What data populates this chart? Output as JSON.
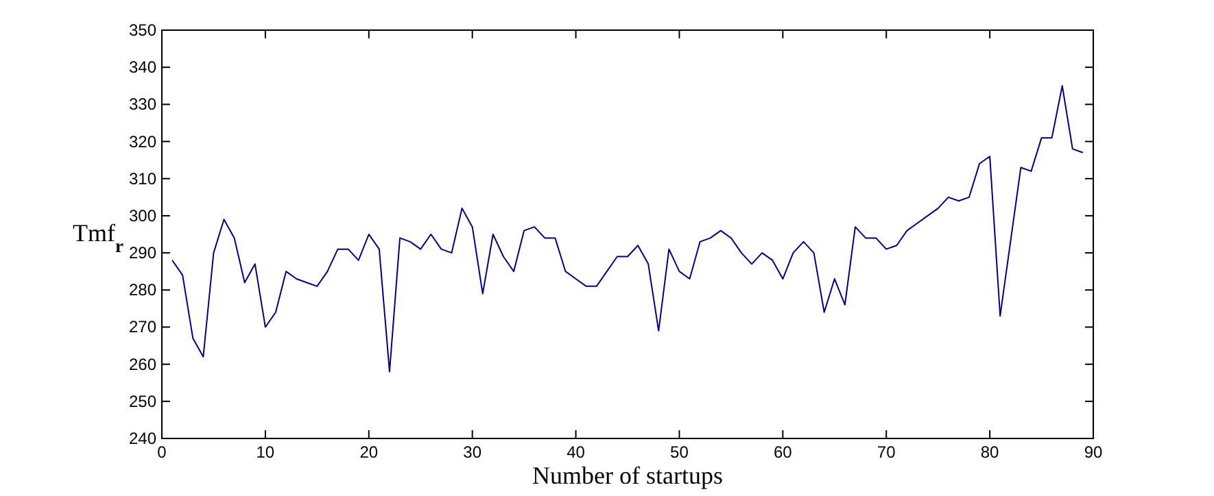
{
  "chart_data": {
    "type": "line",
    "xlabel": "Number of startups",
    "ylabel": "Tmf$_{r}$",
    "xlim": [
      0,
      90
    ],
    "xticks": [
      0,
      10,
      20,
      30,
      40,
      50,
      60,
      70,
      80,
      90
    ],
    "ylim": [
      240,
      350
    ],
    "yticks": [
      240,
      250,
      260,
      270,
      280,
      290,
      300,
      310,
      320,
      330,
      340,
      350
    ],
    "grid": false,
    "series": [
      {
        "color": "#000080",
        "x": [
          1,
          2,
          3,
          4,
          5,
          6,
          7,
          8,
          9,
          10,
          11,
          12,
          13,
          14,
          15,
          16,
          17,
          18,
          19,
          20,
          21,
          22,
          23,
          24,
          25,
          26,
          27,
          28,
          29,
          30,
          31,
          32,
          33,
          34,
          35,
          36,
          37,
          38,
          39,
          40,
          41,
          42,
          43,
          44,
          45,
          46,
          47,
          48,
          49,
          50,
          51,
          52,
          53,
          54,
          55,
          56,
          57,
          58,
          59,
          60,
          61,
          62,
          63,
          64,
          65,
          66,
          67,
          68,
          69,
          70,
          71,
          72,
          73,
          74,
          75,
          76,
          77,
          78,
          79,
          80,
          81,
          82,
          83,
          84,
          85,
          86,
          87,
          88,
          89
        ],
        "values": [
          288,
          284,
          267,
          262,
          290,
          299,
          294,
          282,
          287,
          270,
          274,
          285,
          283,
          282,
          281,
          285,
          291,
          291,
          288,
          295,
          291,
          258,
          294,
          293,
          291,
          295,
          291,
          290,
          302,
          297,
          279,
          295,
          289,
          285,
          296,
          297,
          294,
          294,
          285,
          283,
          281,
          281,
          285,
          289,
          289,
          292,
          287,
          269,
          291,
          285,
          283,
          293,
          294,
          296,
          294,
          290,
          287,
          290,
          288,
          283,
          290,
          293,
          290,
          274,
          283,
          276,
          297,
          294,
          294,
          291,
          292,
          296,
          298,
          300,
          302,
          305,
          304,
          305,
          314,
          316,
          273,
          293,
          313,
          312,
          321,
          321,
          335,
          318,
          317
        ]
      }
    ]
  }
}
